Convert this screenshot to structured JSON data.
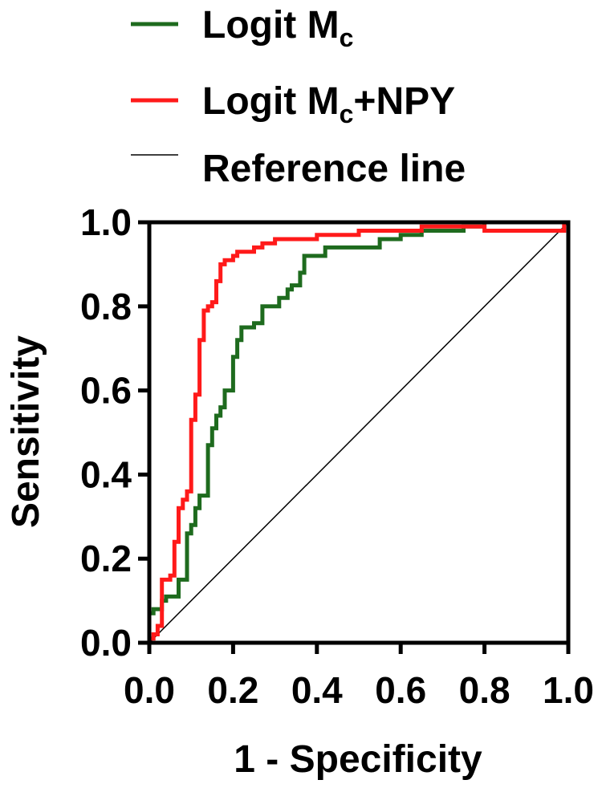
{
  "chart_data": {
    "type": "line",
    "xlabel": "1 - Specificity",
    "ylabel": "Sensitivity",
    "xlim": [
      0,
      1
    ],
    "ylim": [
      0,
      1
    ],
    "grid": false,
    "legend_position": "top",
    "x_ticks": [
      "0.0",
      "0.2",
      "0.4",
      "0.6",
      "0.8",
      "1.0"
    ],
    "y_ticks": [
      "0.0",
      "0.2",
      "0.4",
      "0.6",
      "0.8",
      "1.0"
    ],
    "series": [
      {
        "name": "Logit Mc",
        "legend_main": "Logit M",
        "legend_sub": "c",
        "legend_suffix": "",
        "color": "#1e6b1e",
        "points": [
          [
            0,
            0
          ],
          [
            0,
            0.07
          ],
          [
            0.01,
            0.07
          ],
          [
            0.01,
            0.08
          ],
          [
            0.03,
            0.08
          ],
          [
            0.03,
            0.1
          ],
          [
            0.04,
            0.1
          ],
          [
            0.04,
            0.11
          ],
          [
            0.07,
            0.11
          ],
          [
            0.07,
            0.15
          ],
          [
            0.09,
            0.15
          ],
          [
            0.09,
            0.26
          ],
          [
            0.1,
            0.26
          ],
          [
            0.1,
            0.28
          ],
          [
            0.11,
            0.28
          ],
          [
            0.11,
            0.32
          ],
          [
            0.12,
            0.32
          ],
          [
            0.12,
            0.35
          ],
          [
            0.14,
            0.35
          ],
          [
            0.14,
            0.47
          ],
          [
            0.15,
            0.47
          ],
          [
            0.15,
            0.51
          ],
          [
            0.16,
            0.51
          ],
          [
            0.16,
            0.54
          ],
          [
            0.17,
            0.54
          ],
          [
            0.17,
            0.56
          ],
          [
            0.18,
            0.56
          ],
          [
            0.18,
            0.6
          ],
          [
            0.2,
            0.6
          ],
          [
            0.2,
            0.68
          ],
          [
            0.21,
            0.68
          ],
          [
            0.21,
            0.72
          ],
          [
            0.22,
            0.72
          ],
          [
            0.22,
            0.75
          ],
          [
            0.25,
            0.75
          ],
          [
            0.25,
            0.76
          ],
          [
            0.27,
            0.76
          ],
          [
            0.27,
            0.8
          ],
          [
            0.31,
            0.8
          ],
          [
            0.31,
            0.82
          ],
          [
            0.33,
            0.82
          ],
          [
            0.33,
            0.84
          ],
          [
            0.34,
            0.84
          ],
          [
            0.34,
            0.85
          ],
          [
            0.36,
            0.85
          ],
          [
            0.36,
            0.88
          ],
          [
            0.37,
            0.88
          ],
          [
            0.37,
            0.92
          ],
          [
            0.42,
            0.92
          ],
          [
            0.42,
            0.94
          ],
          [
            0.55,
            0.94
          ],
          [
            0.55,
            0.96
          ],
          [
            0.6,
            0.96
          ],
          [
            0.6,
            0.97
          ],
          [
            0.65,
            0.97
          ],
          [
            0.65,
            0.98
          ],
          [
            0.75,
            0.98
          ],
          [
            0.75,
            0.99
          ],
          [
            0.8,
            0.99
          ],
          [
            0.8,
            1
          ],
          [
            1,
            1
          ]
        ]
      },
      {
        "name": "Logit Mc+NPY",
        "legend_main": "Logit M",
        "legend_sub": "c",
        "legend_suffix": "+NPY",
        "color": "#ff1a1a",
        "points": [
          [
            0,
            0
          ],
          [
            0,
            0.01
          ],
          [
            0.01,
            0.01
          ],
          [
            0.01,
            0.02
          ],
          [
            0.02,
            0.02
          ],
          [
            0.02,
            0.04
          ],
          [
            0.03,
            0.04
          ],
          [
            0.03,
            0.15
          ],
          [
            0.05,
            0.15
          ],
          [
            0.05,
            0.16
          ],
          [
            0.06,
            0.16
          ],
          [
            0.06,
            0.24
          ],
          [
            0.07,
            0.24
          ],
          [
            0.07,
            0.32
          ],
          [
            0.08,
            0.32
          ],
          [
            0.08,
            0.34
          ],
          [
            0.09,
            0.34
          ],
          [
            0.09,
            0.36
          ],
          [
            0.1,
            0.36
          ],
          [
            0.1,
            0.53
          ],
          [
            0.11,
            0.53
          ],
          [
            0.11,
            0.59
          ],
          [
            0.12,
            0.59
          ],
          [
            0.12,
            0.72
          ],
          [
            0.13,
            0.72
          ],
          [
            0.13,
            0.79
          ],
          [
            0.14,
            0.79
          ],
          [
            0.14,
            0.8
          ],
          [
            0.15,
            0.8
          ],
          [
            0.15,
            0.81
          ],
          [
            0.16,
            0.81
          ],
          [
            0.16,
            0.86
          ],
          [
            0.17,
            0.86
          ],
          [
            0.17,
            0.9
          ],
          [
            0.18,
            0.9
          ],
          [
            0.18,
            0.91
          ],
          [
            0.2,
            0.91
          ],
          [
            0.2,
            0.92
          ],
          [
            0.21,
            0.92
          ],
          [
            0.21,
            0.93
          ],
          [
            0.25,
            0.93
          ],
          [
            0.25,
            0.94
          ],
          [
            0.27,
            0.94
          ],
          [
            0.27,
            0.95
          ],
          [
            0.3,
            0.95
          ],
          [
            0.3,
            0.96
          ],
          [
            0.4,
            0.96
          ],
          [
            0.4,
            0.97
          ],
          [
            0.5,
            0.97
          ],
          [
            0.5,
            0.98
          ],
          [
            0.65,
            0.98
          ],
          [
            0.65,
            0.99
          ],
          [
            0.8,
            0.99
          ],
          [
            0.8,
            0.98
          ],
          [
            0.8,
            0.98
          ],
          [
            0.99,
            0.98
          ],
          [
            0.99,
            1
          ],
          [
            1,
            1
          ]
        ]
      },
      {
        "name": "Reference line",
        "legend_main": "Reference line",
        "legend_sub": "",
        "legend_suffix": "",
        "color": "#000000",
        "points": [
          [
            0,
            0
          ],
          [
            1,
            1
          ]
        ]
      }
    ]
  }
}
